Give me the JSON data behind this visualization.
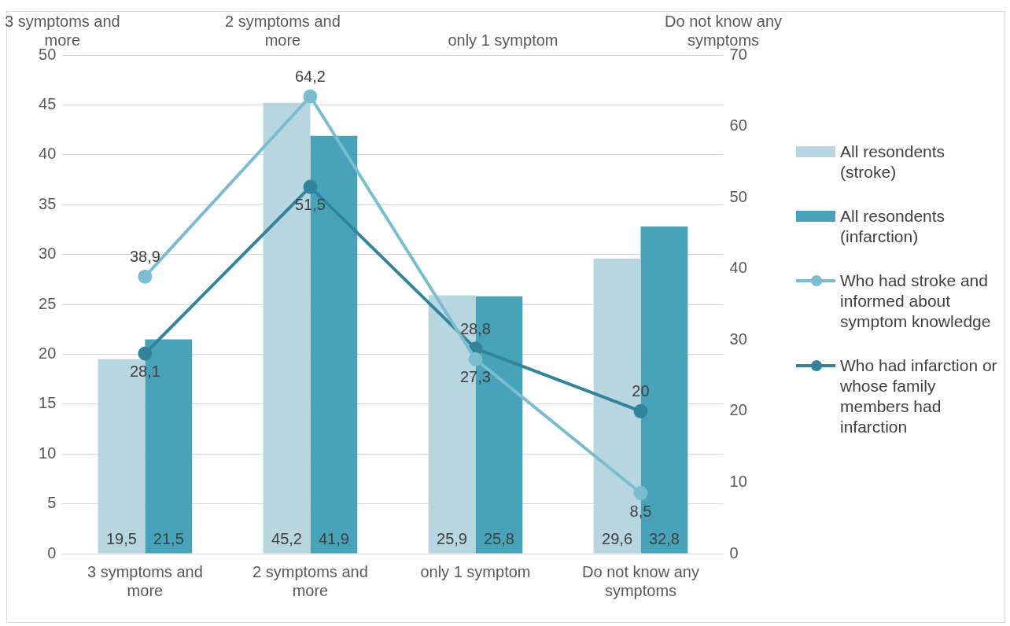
{
  "chart_data": {
    "type": "bar",
    "categories": [
      "3 symptoms and more",
      "2 symptoms and more",
      "only 1 symptom",
      "Do not know any symptoms"
    ],
    "series": [
      {
        "name": "All resondents (stroke)",
        "color": "#b7d6e0",
        "values": [
          19.5,
          45.2,
          25.9,
          29.6
        ],
        "value_labels": [
          "19,5",
          "45,2",
          "25,9",
          "29,6"
        ]
      },
      {
        "name": "All resondents (infarction)",
        "color": "#46a3b9",
        "values": [
          21.5,
          41.9,
          25.8,
          32.8
        ],
        "value_labels": [
          "21,5",
          "41,9",
          "25,8",
          "32,8"
        ]
      },
      {
        "name": "Who had stroke and informed about symptom knowledge",
        "type": "line",
        "axis": "y2",
        "color": "#7bbdd0",
        "values": [
          38.9,
          64.2,
          27.3,
          8.5
        ],
        "value_labels": [
          "38,9",
          "64,2",
          "27,3",
          "8,5"
        ]
      },
      {
        "name": "Who had infarction or whose family members had infarction",
        "type": "line",
        "axis": "y2",
        "color": "#31849b",
        "values": [
          28.1,
          51.5,
          28.8,
          20
        ],
        "value_labels": [
          "28,1",
          "51,5",
          "28,8",
          "20"
        ]
      }
    ],
    "ylim": [
      0,
      50
    ],
    "yticks": [
      0,
      5,
      10,
      15,
      20,
      25,
      30,
      35,
      40,
      45,
      50
    ],
    "y2lim": [
      0,
      70
    ],
    "y2ticks": [
      0,
      10,
      20,
      30,
      40,
      50,
      60,
      70
    ],
    "grid": "y",
    "legend": "right",
    "marker": "circle",
    "line_style": "solid"
  }
}
